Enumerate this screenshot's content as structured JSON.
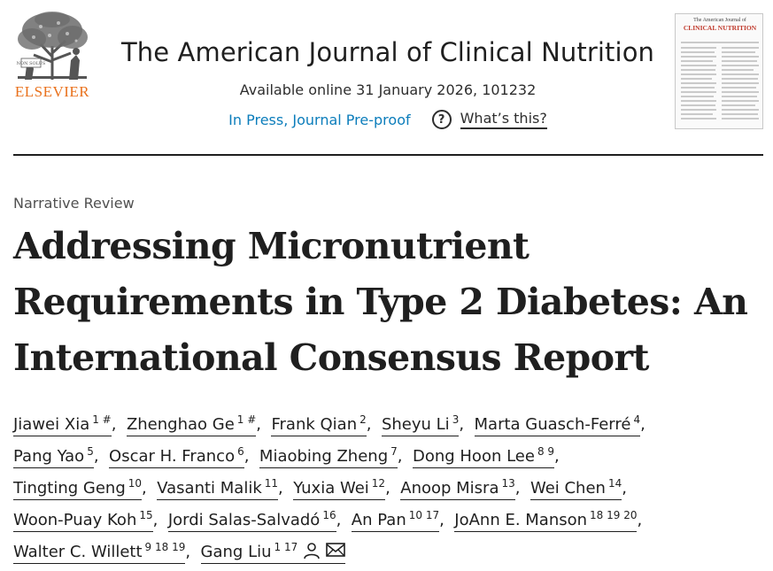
{
  "header": {
    "publisher": "ELSEVIER",
    "journal_title": "The American Journal of Clinical Nutrition",
    "availability": "Available online 31 January 2026, 101232",
    "status_link": "In Press, Journal Pre-proof",
    "whats_this": "What’s this?",
    "cover": {
      "masthead": "The American Journal of",
      "title": "CLINICAL NUTRITION"
    }
  },
  "article": {
    "type": "Narrative Review",
    "title_lines": [
      "Addressing Micronutrient",
      "Requirements in Type 2 Diabetes: An",
      "International Consensus Report"
    ]
  },
  "authors": [
    {
      "name": "Jiawei Xia",
      "sup": "1 #"
    },
    {
      "name": "Zhenghao Ge",
      "sup": "1 #"
    },
    {
      "name": "Frank Qian",
      "sup": "2"
    },
    {
      "name": "Sheyu Li",
      "sup": "3"
    },
    {
      "name": "Marta Guasch-Ferré",
      "sup": "4"
    },
    {
      "name": "Pang Yao",
      "sup": "5"
    },
    {
      "name": "Oscar H. Franco",
      "sup": "6"
    },
    {
      "name": "Miaobing Zheng",
      "sup": "7"
    },
    {
      "name": "Dong Hoon Lee",
      "sup": "8 9"
    },
    {
      "name": "Tingting Geng",
      "sup": "10"
    },
    {
      "name": "Vasanti Malik",
      "sup": "11"
    },
    {
      "name": "Yuxia Wei",
      "sup": "12"
    },
    {
      "name": "Anoop Misra",
      "sup": "13"
    },
    {
      "name": "Wei Chen",
      "sup": "14"
    },
    {
      "name": "Woon-Puay Koh",
      "sup": "15"
    },
    {
      "name": "Jordi Salas-Salvadó",
      "sup": "16"
    },
    {
      "name": "An Pan",
      "sup": "10 17"
    },
    {
      "name": "JoAnn E. Manson",
      "sup": "18 19 20"
    },
    {
      "name": "Walter C. Willett",
      "sup": "9 18 19"
    },
    {
      "name": "Gang Liu",
      "sup": "1 17"
    }
  ]
}
